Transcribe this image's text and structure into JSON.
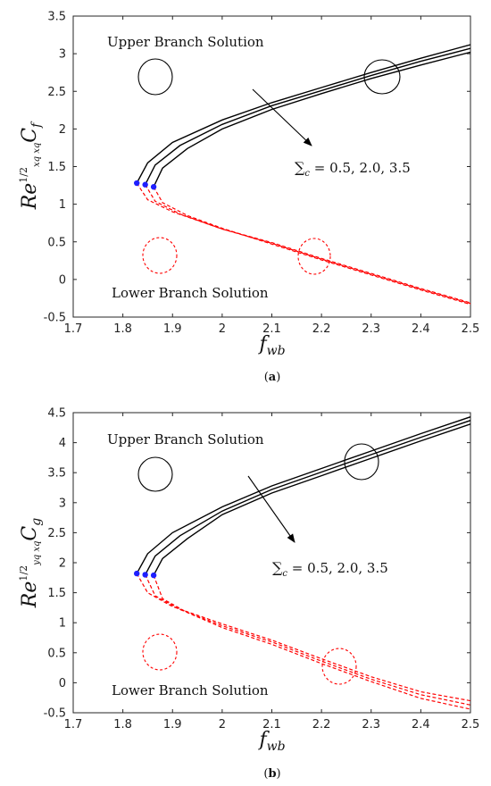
{
  "chart_data": [
    {
      "type": "line",
      "panel_label": "(a)",
      "panel_letter": "a",
      "xlabel": "f",
      "xlabel_sub": "wb",
      "ylabel": "Re",
      "ylabel_exp": "1/2",
      "ylabel_exp_sub": "x_q x_q",
      "ylabel_tail": "C",
      "ylabel_tail_sub": "f",
      "xlim": [
        1.7,
        2.5
      ],
      "ylim": [
        -0.5,
        3.5
      ],
      "xticks": [
        "1.7",
        "1.8",
        "1.9",
        "2",
        "2.1",
        "2.2",
        "2.3",
        "2.4",
        "2.5"
      ],
      "yticks": [
        "-0.5",
        "0",
        "0.5",
        "1",
        "1.5",
        "2",
        "2.5",
        "3",
        "3.5"
      ],
      "annotations": {
        "upper": "Upper Branch Solution",
        "lower": "Lower Branch Solution",
        "param": "∑c = 0.5, 2.0, 3.5",
        "param_sym": "∑",
        "param_sub": "c",
        "param_values": " = 0.5, 2.0, 3.5"
      },
      "colors": {
        "upper": "#000000",
        "lower": "#ff0000",
        "critical": "#1f1fff"
      },
      "series": [
        {
          "sigma_c": 0.5,
          "critical": [
            1.828,
            1.28
          ],
          "upper": [
            [
              1.828,
              1.28
            ],
            [
              1.85,
              1.55
            ],
            [
              1.9,
              1.82
            ],
            [
              2.0,
              2.12
            ],
            [
              2.1,
              2.35
            ],
            [
              2.2,
              2.55
            ],
            [
              2.3,
              2.75
            ],
            [
              2.4,
              2.94
            ],
            [
              2.5,
              3.12
            ]
          ],
          "lower": [
            [
              1.828,
              1.28
            ],
            [
              1.85,
              1.06
            ],
            [
              1.9,
              0.9
            ],
            [
              2.0,
              0.67
            ],
            [
              2.1,
              0.49
            ],
            [
              2.2,
              0.28
            ],
            [
              2.3,
              0.08
            ],
            [
              2.4,
              -0.12
            ],
            [
              2.5,
              -0.31
            ]
          ]
        },
        {
          "sigma_c": 2.0,
          "critical": [
            1.845,
            1.26
          ],
          "upper": [
            [
              1.845,
              1.26
            ],
            [
              1.865,
              1.52
            ],
            [
              1.915,
              1.78
            ],
            [
              2.0,
              2.06
            ],
            [
              2.1,
              2.31
            ],
            [
              2.2,
              2.51
            ],
            [
              2.3,
              2.71
            ],
            [
              2.4,
              2.9
            ],
            [
              2.5,
              3.07
            ]
          ],
          "lower": [
            [
              1.845,
              1.26
            ],
            [
              1.865,
              1.04
            ],
            [
              1.915,
              0.87
            ],
            [
              2.0,
              0.67
            ],
            [
              2.1,
              0.48
            ],
            [
              2.2,
              0.27
            ],
            [
              2.3,
              0.07
            ],
            [
              2.4,
              -0.13
            ],
            [
              2.5,
              -0.32
            ]
          ]
        },
        {
          "sigma_c": 3.5,
          "critical": [
            1.862,
            1.23
          ],
          "upper": [
            [
              1.862,
              1.23
            ],
            [
              1.88,
              1.48
            ],
            [
              1.93,
              1.74
            ],
            [
              2.0,
              2.0
            ],
            [
              2.1,
              2.26
            ],
            [
              2.2,
              2.47
            ],
            [
              2.3,
              2.67
            ],
            [
              2.4,
              2.85
            ],
            [
              2.5,
              3.02
            ]
          ],
          "lower": [
            [
              1.862,
              1.23
            ],
            [
              1.88,
              1.02
            ],
            [
              1.93,
              0.85
            ],
            [
              2.0,
              0.68
            ],
            [
              2.1,
              0.47
            ],
            [
              2.2,
              0.26
            ],
            [
              2.3,
              0.06
            ],
            [
              2.4,
              -0.14
            ],
            [
              2.5,
              -0.33
            ]
          ]
        }
      ]
    },
    {
      "type": "line",
      "panel_label": "(b)",
      "panel_letter": "b",
      "xlabel": "f",
      "xlabel_sub": "wb",
      "ylabel": "Re",
      "ylabel_exp": "1/2",
      "ylabel_exp_sub": "y_q x_q",
      "ylabel_tail": "C",
      "ylabel_tail_sub": "g",
      "xlim": [
        1.7,
        2.5
      ],
      "ylim": [
        -0.5,
        4.5
      ],
      "xticks": [
        "1.7",
        "1.8",
        "1.9",
        "2",
        "2.1",
        "2.2",
        "2.3",
        "2.4",
        "2.5"
      ],
      "yticks": [
        "-0.5",
        "0",
        "0.5",
        "1",
        "1.5",
        "2",
        "2.5",
        "3",
        "3.5",
        "4",
        "4.5"
      ],
      "annotations": {
        "upper": "Upper Branch Solution",
        "lower": "Lower Branch Solution",
        "param": "∑c = 0.5, 2.0, 3.5",
        "param_sym": "∑",
        "param_sub": "c",
        "param_values": " = 0.5, 2.0, 3.5"
      },
      "colors": {
        "upper": "#000000",
        "lower": "#ff0000",
        "critical": "#1f1fff"
      },
      "series": [
        {
          "sigma_c": 0.5,
          "critical": [
            1.828,
            1.82
          ],
          "upper": [
            [
              1.828,
              1.82
            ],
            [
              1.85,
              2.15
            ],
            [
              1.9,
              2.5
            ],
            [
              2.0,
              2.93
            ],
            [
              2.1,
              3.28
            ],
            [
              2.2,
              3.57
            ],
            [
              2.3,
              3.86
            ],
            [
              2.4,
              4.15
            ],
            [
              2.5,
              4.43
            ]
          ],
          "lower": [
            [
              1.828,
              1.82
            ],
            [
              1.85,
              1.5
            ],
            [
              1.9,
              1.27
            ],
            [
              2.0,
              0.98
            ],
            [
              2.1,
              0.71
            ],
            [
              2.2,
              0.4
            ],
            [
              2.3,
              0.1
            ],
            [
              2.4,
              -0.15
            ],
            [
              2.5,
              -0.3
            ]
          ]
        },
        {
          "sigma_c": 2.0,
          "critical": [
            1.845,
            1.8
          ],
          "upper": [
            [
              1.845,
              1.8
            ],
            [
              1.865,
              2.11
            ],
            [
              1.915,
              2.45
            ],
            [
              2.0,
              2.86
            ],
            [
              2.1,
              3.22
            ],
            [
              2.2,
              3.51
            ],
            [
              2.3,
              3.8
            ],
            [
              2.4,
              4.09
            ],
            [
              2.5,
              4.37
            ]
          ],
          "lower": [
            [
              1.845,
              1.8
            ],
            [
              1.865,
              1.45
            ],
            [
              1.915,
              1.22
            ],
            [
              2.0,
              0.95
            ],
            [
              2.1,
              0.68
            ],
            [
              2.2,
              0.36
            ],
            [
              2.3,
              0.06
            ],
            [
              2.4,
              -0.2
            ],
            [
              2.5,
              -0.37
            ]
          ]
        },
        {
          "sigma_c": 3.5,
          "critical": [
            1.862,
            1.79
          ],
          "upper": [
            [
              1.862,
              1.79
            ],
            [
              1.88,
              2.07
            ],
            [
              1.93,
              2.4
            ],
            [
              2.0,
              2.8
            ],
            [
              2.1,
              3.16
            ],
            [
              2.2,
              3.45
            ],
            [
              2.3,
              3.74
            ],
            [
              2.4,
              4.03
            ],
            [
              2.5,
              4.31
            ]
          ],
          "lower": [
            [
              1.862,
              1.79
            ],
            [
              1.88,
              1.4
            ],
            [
              1.93,
              1.17
            ],
            [
              2.0,
              0.92
            ],
            [
              2.1,
              0.64
            ],
            [
              2.2,
              0.32
            ],
            [
              2.3,
              0.02
            ],
            [
              2.4,
              -0.26
            ],
            [
              2.5,
              -0.44
            ]
          ]
        }
      ]
    }
  ]
}
